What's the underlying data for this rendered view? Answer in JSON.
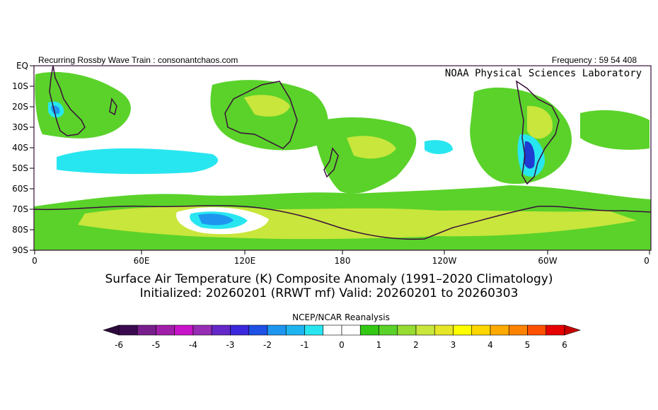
{
  "header": {
    "left_text": "Recurring Rossby Wave Train : consonantchaos.com",
    "right_text": "Frequency : 59 54 408",
    "lab_label": "NOAA Physical Sciences Laboratory"
  },
  "map": {
    "lat_labels": [
      "EQ",
      "10S",
      "20S",
      "30S",
      "40S",
      "50S",
      "60S",
      "70S",
      "80S",
      "90S"
    ],
    "lon_labels": [
      "0",
      "60E",
      "120E",
      "180",
      "120W",
      "60W",
      "0"
    ],
    "colors": {
      "coast": "#3a0e3a",
      "anom_pos_1": "#5ad22a",
      "anom_pos_2": "#c8e63c",
      "anom_neg_1": "#28e6f0",
      "anom_neg_2": "#1e96f0",
      "anom_neg_3": "#1e3cd2"
    }
  },
  "caption": {
    "title": "Surface Air Temperature (K) Composite Anomaly (1991–2020 Climatology)",
    "subtitle": "Initialized: 20260201 (RRWT mf) Valid: 20260201 to 20260303"
  },
  "colorbar": {
    "label": "NCEP/NCAR Reanalysis",
    "ticks": [
      "-6",
      "-5",
      "-4",
      "-3",
      "-2",
      "-1",
      "0",
      "1",
      "2",
      "3",
      "4",
      "5",
      "6"
    ],
    "colors": [
      "#3c0a50",
      "#781e8c",
      "#a01eaa",
      "#c814c8",
      "#962db4",
      "#6428c8",
      "#3c28dc",
      "#1e50e6",
      "#1e96f0",
      "#1eb4f0",
      "#28e6f0",
      "#ffffff",
      "#ffffff",
      "#32c814",
      "#5ad22a",
      "#96dc32",
      "#c8e63c",
      "#e6e628",
      "#ffff00",
      "#ffd700",
      "#ffaa00",
      "#ff8200",
      "#ff5000",
      "#e60000"
    ],
    "end_low": "#2d0a3c",
    "end_high": "#c80000"
  }
}
